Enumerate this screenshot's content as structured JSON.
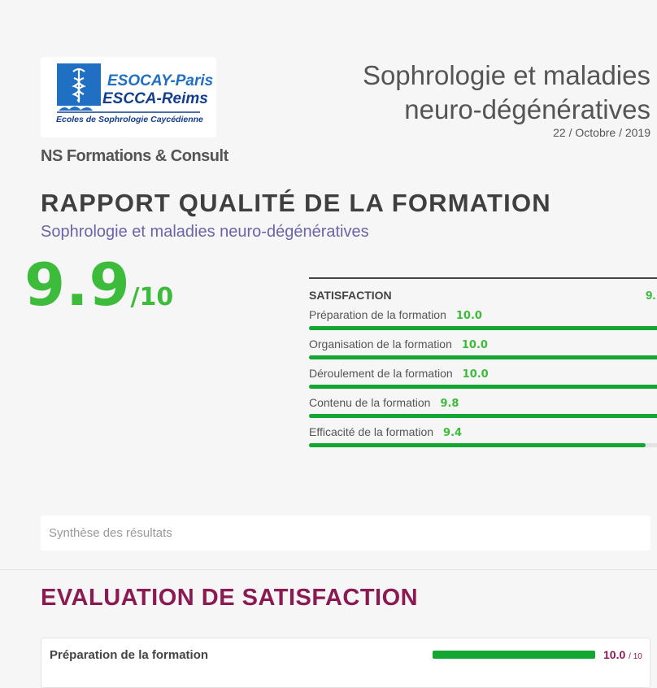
{
  "logo": {
    "line1": "ESOCAY-Paris",
    "line2": "ESCCA-Reims",
    "line3": "Ecoles de Sophrologie Caycédienne",
    "colors": {
      "blue": "#1f6fc2",
      "dark_blue": "#123f8c"
    }
  },
  "organization": "NS Formations & Consult",
  "course": {
    "title": "Sophrologie et maladies neuro-dégénératives",
    "date": "22 / Octobre / 2019"
  },
  "report": {
    "title": "RAPPORT QUALITÉ DE LA FORMATION",
    "subtitle": "Sophrologie et maladies neuro-dégénératives"
  },
  "overall": {
    "score": "9.9",
    "denominator": "/10"
  },
  "satisfaction": {
    "heading": "SATISFACTION",
    "score": "9.",
    "items": [
      {
        "label": "Préparation de la formation",
        "score": "10.0",
        "value": 10.0
      },
      {
        "label": "Organisation de la formation",
        "score": "10.0",
        "value": 10.0
      },
      {
        "label": "Déroulement de la formation",
        "score": "10.0",
        "value": 10.0
      },
      {
        "label": "Contenu de la formation",
        "score": "9.8",
        "value": 9.8
      },
      {
        "label": "Efficacité de la formation",
        "score": "9.4",
        "value": 9.4
      }
    ]
  },
  "synthesis": {
    "label": "Synthèse des résultats"
  },
  "evaluation": {
    "title": "EVALUATION DE SATISFACTION",
    "items": [
      {
        "label": "Préparation de la formation",
        "score": "10.0",
        "max": "/ 10",
        "value": 10.0
      }
    ]
  },
  "colors": {
    "green_text": "#3dbb3a",
    "green_bar": "#14a633",
    "purple_title": "#8b1a53",
    "subtitle": "#6a65a8"
  }
}
